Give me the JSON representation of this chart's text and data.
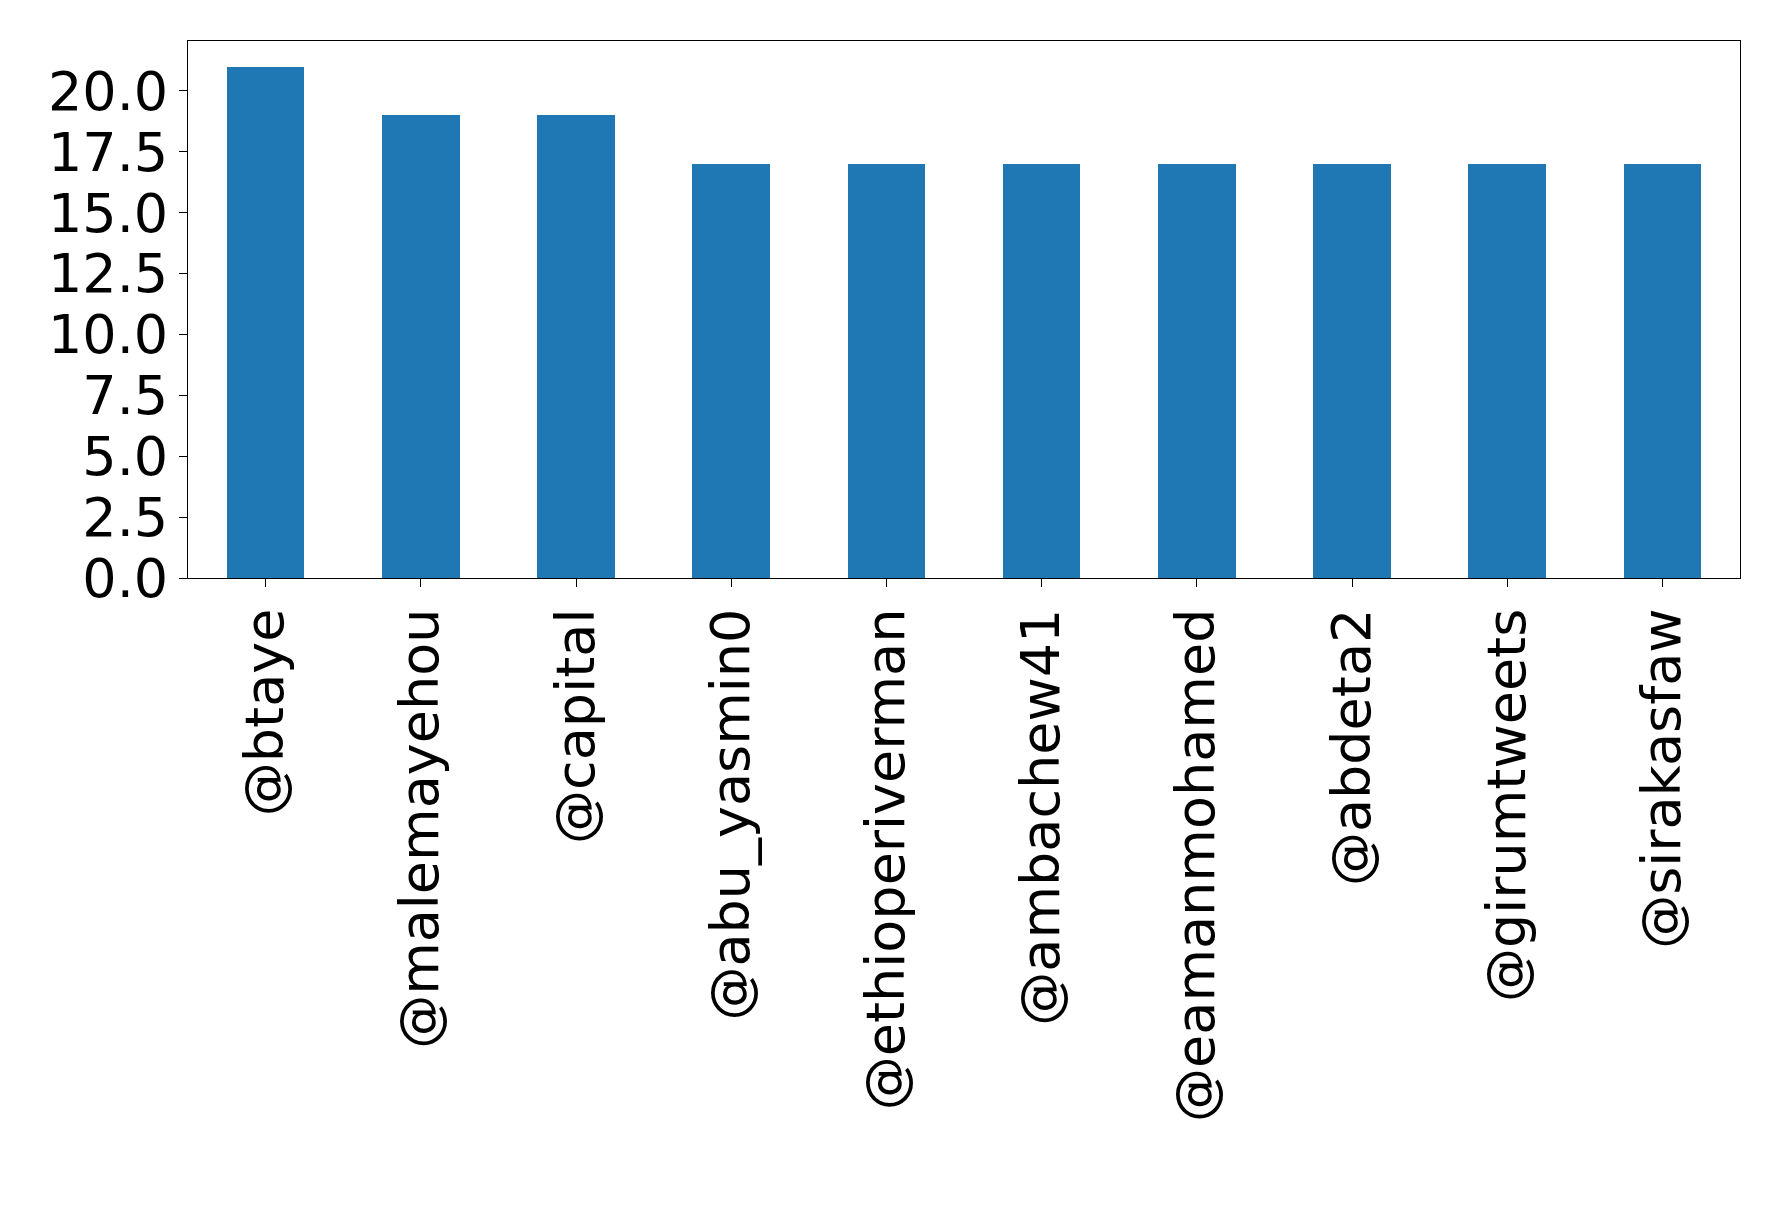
{
  "chart_data": {
    "type": "bar",
    "categories": [
      "@btaye",
      "@malemayehou",
      "@capital",
      "@abu_yasmin0",
      "@ethioperiverman",
      "@ambachew41",
      "@eamanmohamed",
      "@abdeta2",
      "@girumtweets",
      "@sirakasfaw"
    ],
    "values": [
      21,
      19,
      19,
      17,
      17,
      17,
      17,
      17,
      17,
      17
    ],
    "color": "#1f77b4",
    "ylim": [
      0,
      22.05
    ],
    "yticks": [
      {
        "value": 0,
        "label": "0.0"
      },
      {
        "value": 2.5,
        "label": "2.5"
      },
      {
        "value": 5,
        "label": "5.0"
      },
      {
        "value": 7.5,
        "label": "7.5"
      },
      {
        "value": 10,
        "label": "10.0"
      },
      {
        "value": 12.5,
        "label": "12.5"
      },
      {
        "value": 15,
        "label": "15.0"
      },
      {
        "value": 17.5,
        "label": "17.5"
      },
      {
        "value": 20,
        "label": "20.0"
      }
    ],
    "legend": false
  }
}
